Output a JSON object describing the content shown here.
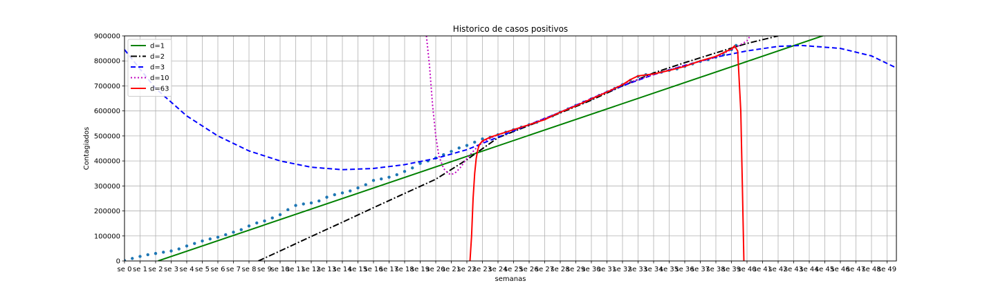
{
  "chart_data": {
    "type": "line",
    "title": "Historico de casos positivos",
    "xlabel": "semanas",
    "ylabel": "Contagiados",
    "xlim": [
      0,
      49.6
    ],
    "ylim": [
      0,
      900000
    ],
    "grid": true,
    "legend_position": "upper-left",
    "x_ticks": [
      0,
      1,
      2,
      3,
      4,
      5,
      6,
      7,
      8,
      9,
      10,
      11,
      12,
      13,
      14,
      15,
      16,
      17,
      18,
      19,
      20,
      21,
      22,
      23,
      24,
      25,
      26,
      27,
      28,
      29,
      30,
      31,
      32,
      33,
      34,
      35,
      36,
      37,
      38,
      39,
      40,
      41,
      42,
      43,
      44,
      45,
      46,
      47,
      48,
      49
    ],
    "x_tick_labels": [
      "se 0",
      "se 1",
      "se 2",
      "se 3",
      "se 4",
      "se 5",
      "se 6",
      "se 7",
      "se 8",
      "se 9",
      "se 10",
      "se 11",
      "se 12",
      "se 13",
      "se 14",
      "se 15",
      "se 16",
      "se 17",
      "se 18",
      "se 19",
      "se 20",
      "se 21",
      "se 22",
      "se 23",
      "se 24",
      "se 25",
      "se 26",
      "se 27",
      "se 28",
      "se 29",
      "se 30",
      "se 31",
      "se 32",
      "se 33",
      "se 34",
      "se 35",
      "se 36",
      "se 37",
      "se 38",
      "se 39",
      "se 40",
      "se 41",
      "se 42",
      "se 43",
      "se 44",
      "se 45",
      "se 46",
      "se 47",
      "se 48",
      "se 49"
    ],
    "y_ticks": [
      0,
      100000,
      200000,
      300000,
      400000,
      500000,
      600000,
      700000,
      800000,
      900000
    ],
    "y_tick_labels": [
      "0",
      "100000",
      "200000",
      "300000",
      "400000",
      "500000",
      "600000",
      "700000",
      "800000",
      "900000"
    ],
    "observed": {
      "color": "#1f77b4",
      "x": [
        0,
        0.5,
        1,
        1.5,
        2,
        2.5,
        3,
        3.5,
        4,
        4.5,
        5,
        5.5,
        6,
        6.5,
        7,
        7.5,
        8,
        8.5,
        9,
        9.5,
        10,
        10.5,
        11,
        11.5,
        12,
        12.5,
        13,
        13.5,
        14,
        14.5,
        15,
        15.5,
        16,
        16.5,
        17,
        17.5,
        18,
        18.5,
        19,
        19.5,
        20,
        20.5,
        21,
        21.5,
        22,
        22.5,
        23,
        23.5,
        24,
        24.5,
        25,
        25.5,
        26,
        26.5,
        27,
        27.5,
        28,
        28.5,
        29,
        29.5,
        30,
        30.5,
        31,
        31.5,
        32,
        32.5,
        33,
        33.5,
        34,
        34.5,
        35,
        35.5,
        36,
        36.5,
        37,
        37.5,
        38,
        38.5,
        39,
        39.3
      ],
      "y": [
        2000,
        10000,
        18000,
        25000,
        30000,
        35000,
        40000,
        48000,
        60000,
        70000,
        80000,
        88000,
        95000,
        105000,
        115000,
        125000,
        140000,
        152000,
        160000,
        172000,
        185000,
        205000,
        222000,
        228000,
        232000,
        240000,
        255000,
        265000,
        272000,
        280000,
        292000,
        305000,
        322000,
        328000,
        335000,
        345000,
        358000,
        372000,
        390000,
        400000,
        412000,
        425000,
        438000,
        452000,
        462000,
        475000,
        488000,
        495000,
        505000,
        515000,
        525000,
        535000,
        545000,
        555000,
        568000,
        580000,
        595000,
        608000,
        622000,
        635000,
        648000,
        662000,
        675000,
        690000,
        705000,
        722000,
        738000,
        745000,
        748000,
        755000,
        762000,
        768000,
        778000,
        788000,
        798000,
        805000,
        815000,
        825000,
        845000,
        862000
      ]
    },
    "series": [
      {
        "name": "d=1",
        "color": "#008000",
        "dash": "solid",
        "x": [
          2.15,
          49.6
        ],
        "y": [
          0,
          1000000
        ]
      },
      {
        "name": "d=2",
        "color": "#000000",
        "dash": "dashdot",
        "x": [
          8.6,
          10,
          12,
          14,
          16,
          18,
          20,
          22,
          24,
          26,
          28,
          30,
          32,
          34,
          36,
          38,
          40,
          42
        ],
        "y": [
          0,
          40000,
          98000,
          155000,
          213000,
          270000,
          327000,
          405000,
          493000,
          542000,
          592000,
          643000,
          700000,
          752000,
          793000,
          832000,
          870000,
          900000
        ]
      },
      {
        "name": "d=3",
        "color": "#0000ff",
        "dash": "dashed",
        "x": [
          0,
          2,
          4,
          6,
          8,
          10,
          12,
          14,
          16,
          18,
          20,
          22,
          24,
          26,
          28,
          30,
          32,
          34,
          36,
          38,
          40,
          42,
          43.5,
          46,
          48,
          49.6
        ],
        "y": [
          845000,
          690000,
          580000,
          500000,
          440000,
          400000,
          375000,
          365000,
          370000,
          385000,
          410000,
          445000,
          495000,
          545000,
          595000,
          650000,
          700000,
          745000,
          782000,
          815000,
          840000,
          858000,
          862000,
          850000,
          820000,
          772000
        ]
      },
      {
        "name": "d=10",
        "color": "#bf00bf",
        "dash": "dotted",
        "x": [
          19.4,
          19.6,
          19.8,
          20,
          20.2,
          20.5,
          20.8,
          21,
          21.3,
          21.6,
          22,
          22.5,
          23,
          24,
          26,
          28,
          30,
          32,
          34,
          36,
          38,
          39,
          39.5,
          40,
          40.2
        ],
        "y": [
          900000,
          780000,
          620000,
          500000,
          420000,
          370000,
          350000,
          345000,
          355000,
          375000,
          410000,
          445000,
          475000,
          505000,
          545000,
          595000,
          650000,
          705000,
          745000,
          782000,
          815000,
          845000,
          862000,
          880000,
          900000
        ]
      },
      {
        "name": "d=63",
        "color": "#ff0000",
        "dash": "solid",
        "x": [
          22.2,
          22.3,
          22.4,
          22.5,
          22.6,
          22.7,
          22.8,
          23,
          23.5,
          24,
          25,
          26,
          27,
          28,
          29,
          30,
          31,
          32,
          32.5,
          33,
          34,
          35,
          36,
          37,
          38,
          39,
          39.2,
          39.4,
          39.6,
          39.7,
          39.8
        ],
        "y": [
          0,
          100000,
          250000,
          350000,
          410000,
          445000,
          465000,
          480000,
          495000,
          505000,
          525000,
          545000,
          565000,
          595000,
          620000,
          648000,
          675000,
          705000,
          725000,
          740000,
          748000,
          762000,
          778000,
          800000,
          818000,
          848000,
          860000,
          840000,
          600000,
          300000,
          0
        ]
      }
    ]
  }
}
